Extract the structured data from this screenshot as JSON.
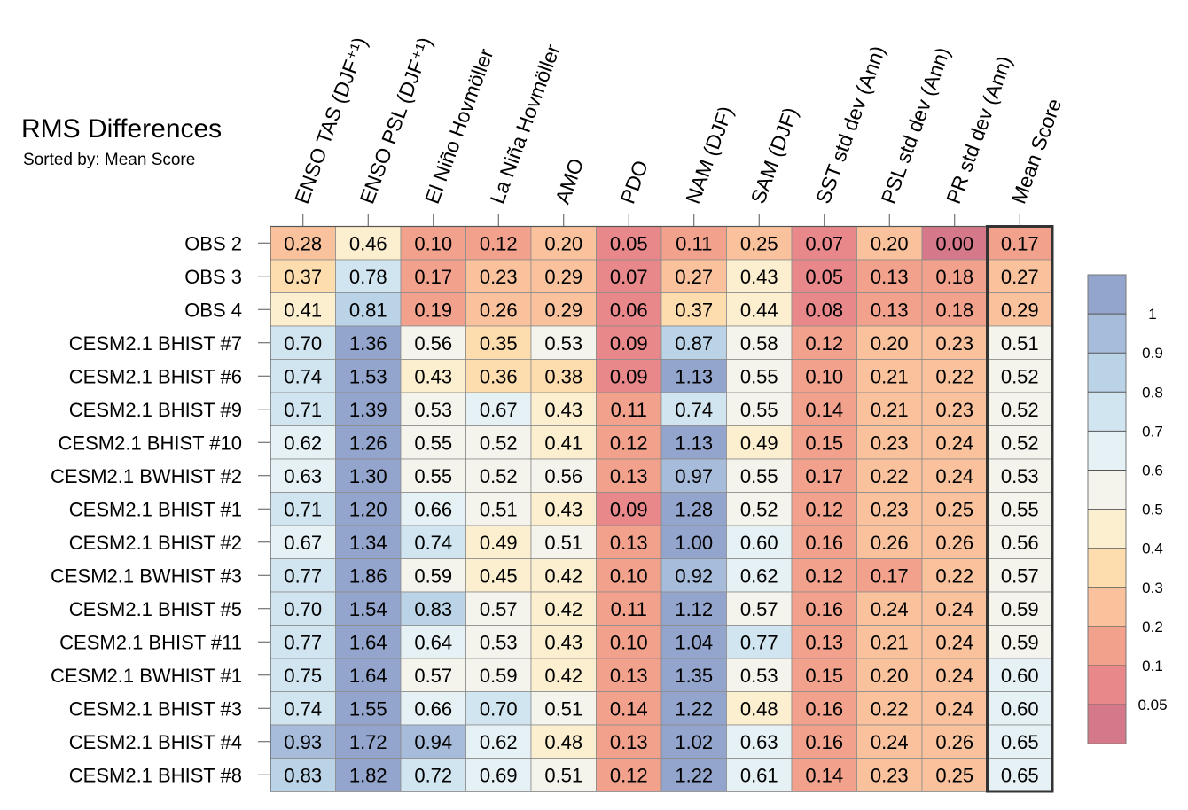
{
  "chart_data": {
    "type": "heatmap",
    "title": "RMS Differences",
    "subtitle": "Sorted by: Mean Score",
    "columns": [
      "ENSO TAS (DJF⁺¹)",
      "ENSO PSL (DJF⁺¹)",
      "El Niño Hovmöller",
      "La Niña Hovmöller",
      "AMO",
      "PDO",
      "NAM (DJF)",
      "SAM (DJF)",
      "SST std dev (Ann)",
      "PSL std dev (Ann)",
      "PR std dev (Ann)",
      "Mean Score"
    ],
    "rows": [
      "OBS 2",
      "OBS 3",
      "OBS 4",
      "CESM2.1 BHIST #7",
      "CESM2.1 BHIST #6",
      "CESM2.1 BHIST #9",
      "CESM2.1 BHIST #10",
      "CESM2.1 BWHIST #2",
      "CESM2.1 BHIST #1",
      "CESM2.1 BHIST #2",
      "CESM2.1 BWHIST #3",
      "CESM2.1 BHIST #5",
      "CESM2.1 BHIST #11",
      "CESM2.1 BWHIST #1",
      "CESM2.1 BHIST #3",
      "CESM2.1 BHIST #4",
      "CESM2.1 BHIST #8"
    ],
    "values": [
      [
        "0.28",
        "0.46",
        "0.10",
        "0.12",
        "0.20",
        "0.05",
        "0.11",
        "0.25",
        "0.07",
        "0.20",
        "0.00",
        "0.17"
      ],
      [
        "0.37",
        "0.78",
        "0.17",
        "0.23",
        "0.29",
        "0.07",
        "0.27",
        "0.43",
        "0.05",
        "0.13",
        "0.18",
        "0.27"
      ],
      [
        "0.41",
        "0.81",
        "0.19",
        "0.26",
        "0.29",
        "0.06",
        "0.37",
        "0.44",
        "0.08",
        "0.13",
        "0.18",
        "0.29"
      ],
      [
        "0.70",
        "1.36",
        "0.56",
        "0.35",
        "0.53",
        "0.09",
        "0.87",
        "0.58",
        "0.12",
        "0.20",
        "0.23",
        "0.51"
      ],
      [
        "0.74",
        "1.53",
        "0.43",
        "0.36",
        "0.38",
        "0.09",
        "1.13",
        "0.55",
        "0.10",
        "0.21",
        "0.22",
        "0.52"
      ],
      [
        "0.71",
        "1.39",
        "0.53",
        "0.67",
        "0.43",
        "0.11",
        "0.74",
        "0.55",
        "0.14",
        "0.21",
        "0.23",
        "0.52"
      ],
      [
        "0.62",
        "1.26",
        "0.55",
        "0.52",
        "0.41",
        "0.12",
        "1.13",
        "0.49",
        "0.15",
        "0.23",
        "0.24",
        "0.52"
      ],
      [
        "0.63",
        "1.30",
        "0.55",
        "0.52",
        "0.56",
        "0.13",
        "0.97",
        "0.55",
        "0.17",
        "0.22",
        "0.24",
        "0.53"
      ],
      [
        "0.71",
        "1.20",
        "0.66",
        "0.51",
        "0.43",
        "0.09",
        "1.28",
        "0.52",
        "0.12",
        "0.23",
        "0.25",
        "0.55"
      ],
      [
        "0.67",
        "1.34",
        "0.74",
        "0.49",
        "0.51",
        "0.13",
        "1.00",
        "0.60",
        "0.16",
        "0.26",
        "0.26",
        "0.56"
      ],
      [
        "0.77",
        "1.86",
        "0.59",
        "0.45",
        "0.42",
        "0.10",
        "0.92",
        "0.62",
        "0.12",
        "0.17",
        "0.22",
        "0.57"
      ],
      [
        "0.70",
        "1.54",
        "0.83",
        "0.57",
        "0.42",
        "0.11",
        "1.12",
        "0.57",
        "0.16",
        "0.24",
        "0.24",
        "0.59"
      ],
      [
        "0.77",
        "1.64",
        "0.64",
        "0.53",
        "0.43",
        "0.10",
        "1.04",
        "0.77",
        "0.13",
        "0.21",
        "0.24",
        "0.59"
      ],
      [
        "0.75",
        "1.64",
        "0.57",
        "0.59",
        "0.42",
        "0.13",
        "1.35",
        "0.53",
        "0.15",
        "0.20",
        "0.24",
        "0.60"
      ],
      [
        "0.74",
        "1.55",
        "0.66",
        "0.70",
        "0.51",
        "0.14",
        "1.22",
        "0.48",
        "0.16",
        "0.22",
        "0.24",
        "0.60"
      ],
      [
        "0.93",
        "1.72",
        "0.94",
        "0.62",
        "0.48",
        "0.13",
        "1.02",
        "0.63",
        "0.16",
        "0.24",
        "0.26",
        "0.65"
      ],
      [
        "0.83",
        "1.82",
        "0.72",
        "0.69",
        "0.51",
        "0.12",
        "1.22",
        "0.61",
        "0.14",
        "0.23",
        "0.25",
        "0.65"
      ]
    ],
    "colorbar": {
      "levels": [
        "1",
        "0.9",
        "0.8",
        "0.7",
        "0.6",
        "0.5",
        "0.4",
        "0.3",
        "0.2",
        "0.1",
        "0.05"
      ],
      "level_values": [
        1,
        0.9,
        0.8,
        0.7,
        0.6,
        0.5,
        0.4,
        0.3,
        0.2,
        0.1,
        0.05
      ],
      "colors": [
        "#93a5cc",
        "#a6bcda",
        "#bbd3e6",
        "#d1e5f0",
        "#e6f1f6",
        "#f4f4ec",
        "#fbefcf",
        "#fddcad",
        "#f9c29c",
        "#f2a28c",
        "#e8888a",
        "#d4788a"
      ]
    },
    "highlight_column": "Mean Score"
  }
}
